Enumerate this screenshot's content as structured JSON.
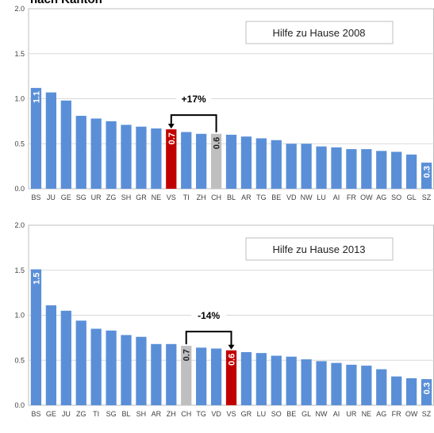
{
  "page_title": "nach Kanton",
  "chart_data": [
    {
      "type": "bar",
      "title": "Hilfe zu Hause 2008",
      "ylim": [
        0,
        2.0
      ],
      "yticks": [
        "0.0",
        "0.5",
        "1.0",
        "1.5",
        "2.0"
      ],
      "grid": true,
      "categories": [
        "BS",
        "JU",
        "GE",
        "SG",
        "UR",
        "ZG",
        "SH",
        "GR",
        "NE",
        "VS",
        "TI",
        "ZH",
        "CH",
        "BL",
        "AR",
        "TG",
        "BE",
        "VD",
        "NW",
        "LU",
        "AI",
        "FR",
        "OW",
        "AG",
        "SO",
        "GL",
        "SZ"
      ],
      "values": [
        1.12,
        1.07,
        0.98,
        0.81,
        0.78,
        0.75,
        0.71,
        0.69,
        0.67,
        0.66,
        0.63,
        0.61,
        0.61,
        0.6,
        0.58,
        0.56,
        0.54,
        0.5,
        0.5,
        0.47,
        0.46,
        0.44,
        0.44,
        0.42,
        0.41,
        0.38,
        0.29
      ],
      "data_labels": {
        "BS": "1.1",
        "VS": "0.7",
        "CH": "0.6",
        "SZ": "0.3"
      },
      "highlights": {
        "VS": "#c00000",
        "CH": "#bfbfbf"
      },
      "bar_color": "#5a8fd8",
      "annotation": {
        "text": "+17%",
        "from": "CH",
        "to": "VS"
      }
    },
    {
      "type": "bar",
      "title": "Hilfe zu Hause 2013",
      "ylim": [
        0,
        2.0
      ],
      "yticks": [
        "0.0",
        "0.5",
        "1.0",
        "1.5",
        "2.0"
      ],
      "grid": true,
      "categories": [
        "BS",
        "GE",
        "JU",
        "ZG",
        "TI",
        "SG",
        "BL",
        "SH",
        "AR",
        "ZH",
        "CH",
        "TG",
        "VD",
        "VS",
        "GR",
        "LU",
        "SO",
        "BE",
        "GL",
        "NW",
        "AI",
        "UR",
        "NE",
        "AG",
        "FR",
        "OW",
        "SZ"
      ],
      "values": [
        1.51,
        1.11,
        1.05,
        0.94,
        0.85,
        0.83,
        0.78,
        0.76,
        0.68,
        0.68,
        0.66,
        0.64,
        0.63,
        0.61,
        0.59,
        0.58,
        0.55,
        0.54,
        0.51,
        0.49,
        0.47,
        0.45,
        0.44,
        0.4,
        0.32,
        0.3,
        0.29
      ],
      "data_labels": {
        "BS": "1.5",
        "CH": "0.7",
        "VS": "0.6",
        "SZ": "0.3"
      },
      "highlights": {
        "VS": "#c00000",
        "CH": "#bfbfbf"
      },
      "bar_color": "#5a8fd8",
      "annotation": {
        "text": "-14%",
        "from": "CH",
        "to": "VS"
      }
    }
  ]
}
